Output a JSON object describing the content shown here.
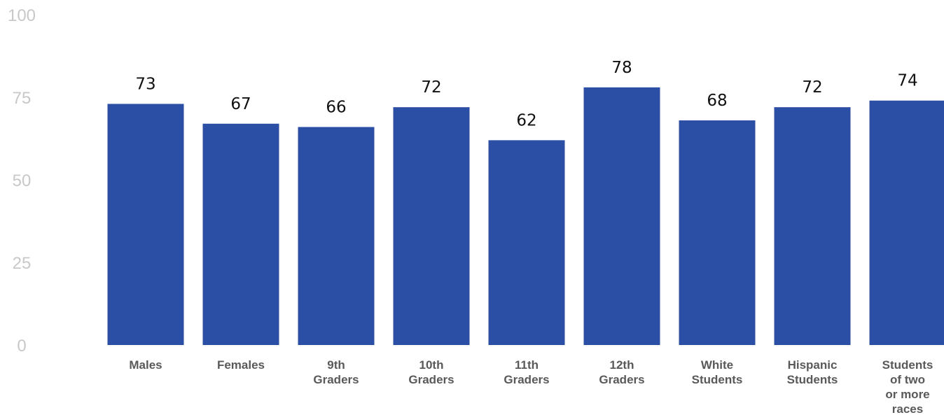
{
  "chart_data": {
    "type": "bar",
    "title": "",
    "xlabel": "",
    "ylabel": "",
    "ylim": [
      0,
      100
    ],
    "yticks": [
      0,
      25,
      50,
      75,
      100
    ],
    "grid": false,
    "legend": "none",
    "bar_color": "#2c4fa6",
    "categories": [
      [
        "Males"
      ],
      [
        "Females"
      ],
      [
        "9th",
        "Graders"
      ],
      [
        "10th",
        "Graders"
      ],
      [
        "11th",
        "Graders"
      ],
      [
        "12th",
        "Graders"
      ],
      [
        "White",
        "Students"
      ],
      [
        "Hispanic",
        "Students"
      ],
      [
        "Students",
        "of two",
        "or more",
        "races"
      ]
    ],
    "values": [
      73,
      67,
      66,
      72,
      62,
      78,
      68,
      72,
      74
    ]
  }
}
